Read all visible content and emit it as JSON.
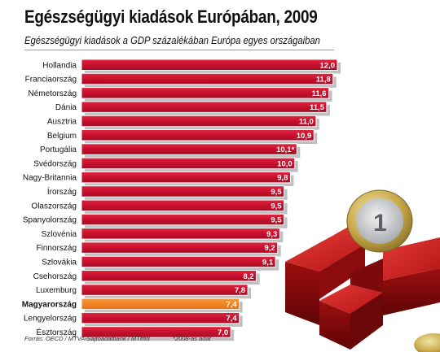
{
  "header": {
    "title": "Egészségügyi kiadások Európában, 2009",
    "subtitle": "Egészségügyi kiadások a GDP százalékában Európa egyes országaiban"
  },
  "footer": {
    "source": "Forrás: OECD / MTVA-Sajtóadatbank / MTI",
    "logo": "mti",
    "note": "*2008-as adat"
  },
  "colors": {
    "bar": "#c8102e",
    "highlight": "#f07f1e",
    "shadow": "#8a8a8a"
  },
  "chart_data": {
    "type": "bar",
    "orientation": "horizontal",
    "title": "Egészségügyi kiadások Európában, 2009",
    "subtitle": "Egészségügyi kiadások a GDP százalékában Európa egyes országaiban",
    "categories": [
      "Hollandia",
      "Franciaország",
      "Németország",
      "Dánia",
      "Ausztria",
      "Belgium",
      "Portugália",
      "Svédország",
      "Nagy-Britannia",
      "Írország",
      "Olaszország",
      "Spanyolország",
      "Szlovénia",
      "Finnország",
      "Szlovákia",
      "Csehország",
      "Luxemburg",
      "Magyarország",
      "Lengyelország",
      "Észtország"
    ],
    "values": [
      12.0,
      11.8,
      11.6,
      11.5,
      11.0,
      10.9,
      10.1,
      10.0,
      9.8,
      9.5,
      9.5,
      9.5,
      9.3,
      9.2,
      9.1,
      8.2,
      7.8,
      7.4,
      7.4,
      7.0
    ],
    "value_labels": [
      "12,0",
      "11,8",
      "11,6",
      "11,5",
      "11,0",
      "10,9",
      "10,1*",
      "10,0",
      "9,8",
      "9,5",
      "9,5",
      "9,5",
      "9,3",
      "9,2",
      "9,1",
      "8,2",
      "7,8",
      "7,4",
      "7,4",
      "7,0"
    ],
    "highlight": "Magyarország",
    "xlim": [
      0,
      12.0
    ],
    "grid": false,
    "legend": "none"
  }
}
